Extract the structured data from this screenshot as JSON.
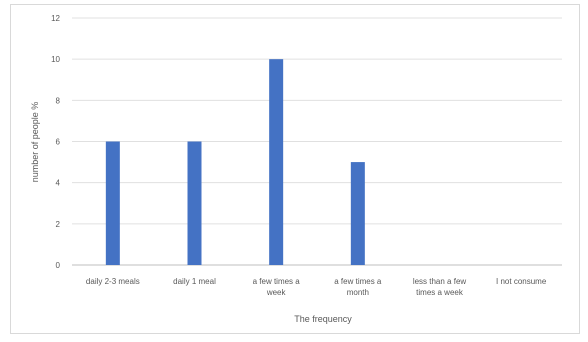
{
  "chart_data": {
    "type": "bar",
    "categories": [
      [
        "daily 2-3 meals"
      ],
      [
        "daily 1 meal"
      ],
      [
        "a few times a",
        "week"
      ],
      [
        "a few times a",
        "month"
      ],
      [
        "less than a few",
        "times a week"
      ],
      [
        "I not consume"
      ]
    ],
    "values": [
      6,
      6,
      10,
      5,
      0,
      0
    ],
    "title": "",
    "xlabel": "The frequency",
    "ylabel": "number of people %",
    "ylim": [
      0,
      12
    ],
    "yticks": [
      0,
      2,
      4,
      6,
      8,
      10,
      12
    ],
    "grid": true,
    "legend": "none",
    "bar_color": "#4472c4",
    "grid_color": "#e0e0e0"
  }
}
